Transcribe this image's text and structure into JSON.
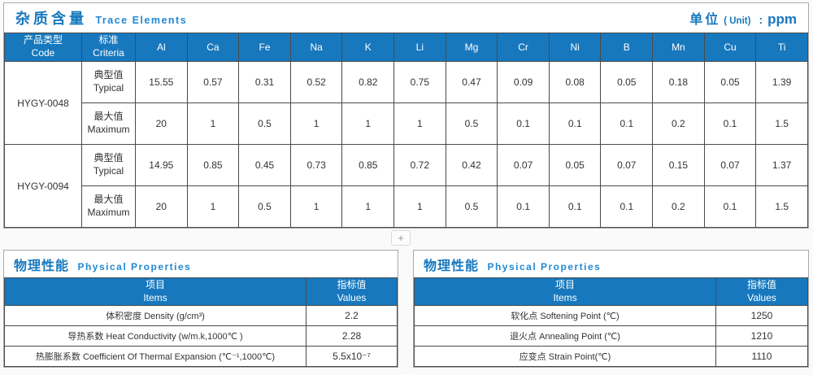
{
  "page": {
    "background": "#fafafa",
    "accent_blue": "#1778be",
    "subtitle_blue": "#2189d2"
  },
  "trace_section": {
    "title_zh": "杂质含量",
    "title_en": "Trace Elements",
    "unit_zh": "单位",
    "unit_en": "( Unit)",
    "unit_colon": ":",
    "unit_value": "ppm",
    "header": {
      "col1_zh": "产品类型",
      "col1_en": "Code",
      "col2_zh": "标准",
      "col2_en": "Criteria"
    },
    "elements": [
      "Al",
      "Ca",
      "Fe",
      "Na",
      "K",
      "Li",
      "Mg",
      "Cr",
      "Ni",
      "B",
      "Mn",
      "Cu",
      "Ti"
    ],
    "criteria": {
      "typical_zh": "典型值",
      "typical_en": "Typical",
      "maximum_zh": "最大值",
      "maximum_en": "Maximum"
    },
    "rows": [
      {
        "code": "HYGY-0048",
        "typical": [
          "15.55",
          "0.57",
          "0.31",
          "0.52",
          "0.82",
          "0.75",
          "0.47",
          "0.09",
          "0.08",
          "0.05",
          "0.18",
          "0.05",
          "1.39"
        ],
        "maximum": [
          "20",
          "1",
          "0.5",
          "1",
          "1",
          "1",
          "0.5",
          "0.1",
          "0.1",
          "0.1",
          "0.2",
          "0.1",
          "1.5"
        ]
      },
      {
        "code": "HYGY-0094",
        "typical": [
          "14.95",
          "0.85",
          "0.45",
          "0.73",
          "0.85",
          "0.72",
          "0.42",
          "0.07",
          "0.05",
          "0.07",
          "0.15",
          "0.07",
          "1.37"
        ],
        "maximum": [
          "20",
          "1",
          "0.5",
          "1",
          "1",
          "1",
          "0.5",
          "0.1",
          "0.1",
          "0.1",
          "0.2",
          "0.1",
          "1.5"
        ]
      }
    ]
  },
  "divider": {
    "plus_label": "+"
  },
  "physical_left": {
    "title_zh": "物理性能",
    "title_en": "Physical Properties",
    "header": {
      "items_zh": "项目",
      "items_en": "Items",
      "values_zh": "指标值",
      "values_en": "Values"
    },
    "rows": [
      {
        "item": "体积密度 Density (g/cm³)",
        "value": "2.2"
      },
      {
        "item": "导热系数 Heat Conductivity (w/m.k,1000℃ )",
        "value": "2.28"
      },
      {
        "item": "热膨胀系数 Coefficient Of Thermal Expansion (℃⁻¹,1000℃)",
        "value": "5.5x10⁻⁷"
      }
    ]
  },
  "physical_right": {
    "title_zh": "物理性能",
    "title_en": "Physical Properties",
    "header": {
      "items_zh": "项目",
      "items_en": "Items",
      "values_zh": "指标值",
      "values_en": "Values"
    },
    "rows": [
      {
        "item": "软化点 Softening Point (℃)",
        "value": "1250"
      },
      {
        "item": "退火点 Annealing Point (℃)",
        "value": "1210"
      },
      {
        "item": "应变点 Strain Point(℃)",
        "value": "1110"
      }
    ]
  }
}
